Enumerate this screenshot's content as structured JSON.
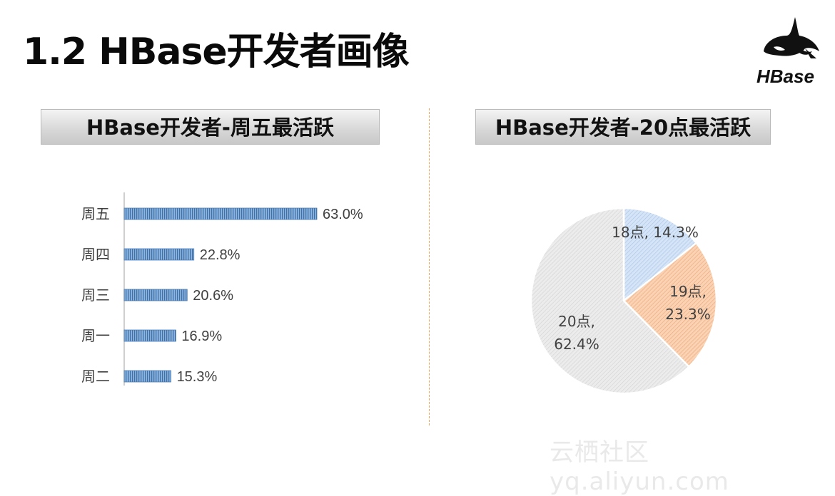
{
  "slide": {
    "title": "1.2 HBase开发者画像",
    "logo_text": "HBase",
    "watermark": "云栖社区 yq.aliyun.com"
  },
  "left_panel": {
    "title": "HBase开发者-周五最活跃"
  },
  "right_panel": {
    "title": "HBase开发者-20点最活跃"
  },
  "chart_data": [
    {
      "type": "bar",
      "orientation": "horizontal",
      "categories": [
        "周五",
        "周四",
        "周三",
        "周一",
        "周二"
      ],
      "values": [
        63.0,
        22.8,
        20.6,
        16.9,
        15.3
      ],
      "labels": [
        "63.0%",
        "22.8%",
        "20.6%",
        "16.9%",
        "15.3%"
      ],
      "unit": "%",
      "xlim": [
        0,
        70
      ],
      "grid": false,
      "colors": {
        "bar": "#5b8fc9",
        "bar_dark": "#2f5f95",
        "axis": "#bfbfbf",
        "text": "#404040"
      }
    },
    {
      "type": "pie",
      "slices": [
        {
          "label": "18点",
          "value": 14.3,
          "text": "18点, 14.3%",
          "color": "#cfe0f5",
          "stroke": "#7fa7d6"
        },
        {
          "label": "19点",
          "value": 23.3,
          "text": "19点,\n23.3%",
          "color": "#f8c9a6",
          "stroke": "#e69a62"
        },
        {
          "label": "20点",
          "value": 62.4,
          "text": "20点,\n62.4%",
          "color": "#e4e4e4",
          "stroke": "#c9c9c9"
        }
      ],
      "start": "top",
      "direction": "clockwise"
    }
  ],
  "colors": {
    "accent_divider": "#f0a35a"
  }
}
